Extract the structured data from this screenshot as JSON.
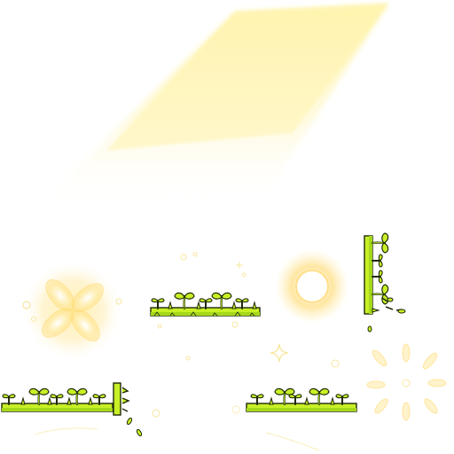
{
  "sheet": {
    "kind": "sprite-atlas",
    "background": "#ffffff",
    "sprites": [
      {
        "id": "light-beam",
        "icon": "light-ray-icon"
      },
      {
        "id": "glow-flower",
        "icon": "four-petal-glow-icon"
      },
      {
        "id": "grass-strip-top",
        "icon": "grass-sprout-strip-icon"
      },
      {
        "id": "sun-orb",
        "icon": "glowing-orb-icon"
      },
      {
        "id": "grass-vertical-right",
        "icon": "vertical-grass-edge-icon"
      },
      {
        "id": "grass-strip-bottom-left",
        "icon": "grass-sprout-strip-icon"
      },
      {
        "id": "grass-strip-bottom-right",
        "icon": "grass-sprout-strip-icon"
      },
      {
        "id": "sparkle-burst",
        "icon": "radial-burst-icon"
      },
      {
        "id": "sparkle",
        "icon": "sparkle-icon"
      }
    ],
    "colors": {
      "beam": "#fff3a8",
      "glow": "#ffe27a",
      "grass_light": "#c8f026",
      "grass_dark": "#7fb800",
      "outline": "#1f2a0a",
      "sparkle": "#f7e7a0"
    }
  }
}
